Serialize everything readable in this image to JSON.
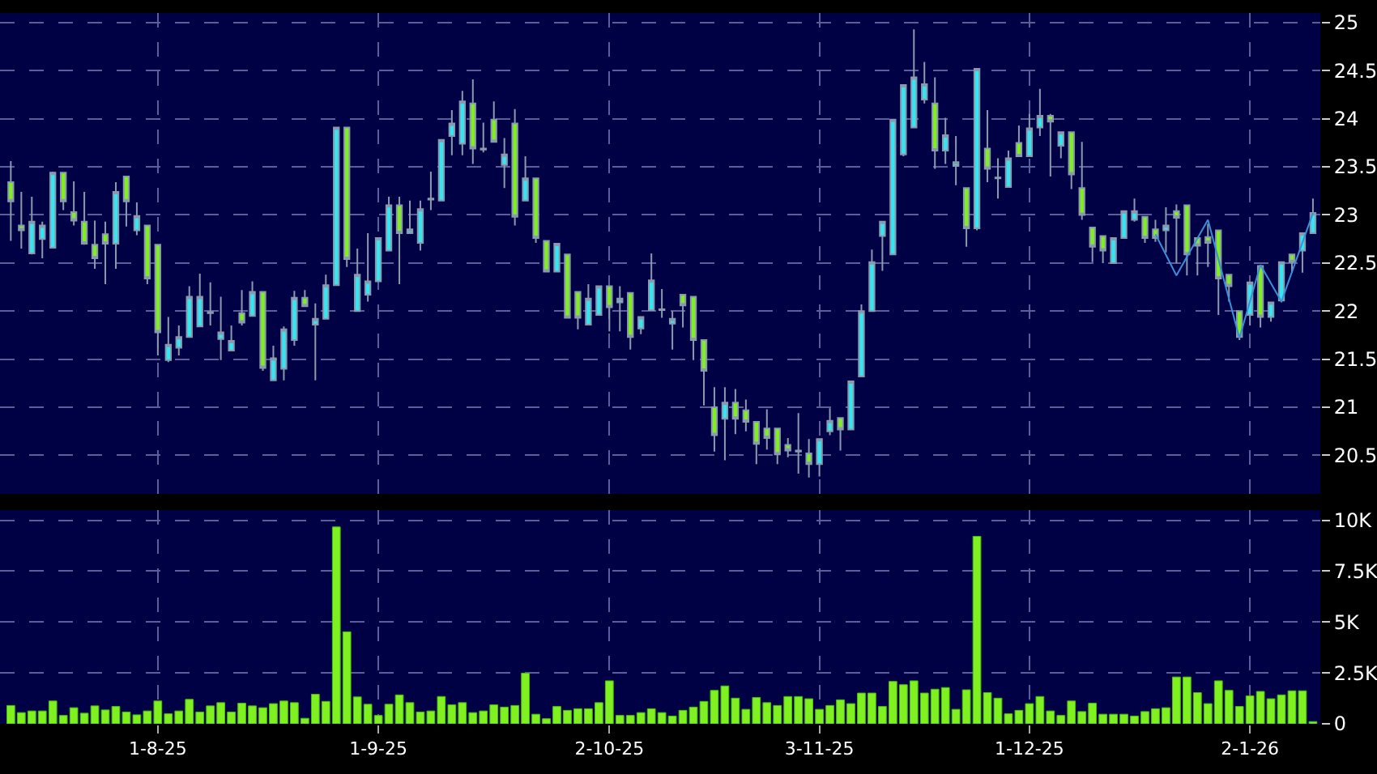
{
  "chart_data": [
    {
      "type": "candlestick",
      "categories": [
        null,
        null,
        null,
        null,
        null,
        null,
        null,
        null,
        null,
        null,
        null,
        null,
        null,
        null,
        "1-8-25",
        null,
        null,
        null,
        null,
        null,
        null,
        null,
        null,
        null,
        null,
        null,
        null,
        null,
        null,
        null,
        null,
        null,
        null,
        null,
        null,
        "1-9-25",
        null,
        null,
        null,
        null,
        null,
        null,
        null,
        null,
        null,
        null,
        null,
        null,
        null,
        null,
        null,
        null,
        null,
        null,
        null,
        null,
        null,
        "2-10-25",
        null,
        null,
        null,
        null,
        null,
        null,
        null,
        null,
        null,
        null,
        null,
        null,
        null,
        null,
        null,
        null,
        null,
        null,
        null,
        "3-11-25",
        null,
        null,
        null,
        null,
        null,
        null,
        null,
        null,
        null,
        null,
        null,
        null,
        null,
        null,
        null,
        null,
        null,
        null,
        null,
        "1-12-25",
        null,
        null,
        null,
        null,
        null,
        null,
        null,
        null,
        null,
        null,
        null,
        null,
        null,
        null,
        null,
        null,
        null,
        null,
        null,
        null,
        "2-1-26",
        null,
        null,
        null,
        null,
        null,
        null
      ],
      "ohlc": [
        [
          23.34,
          23.56,
          22.73,
          23.14
        ],
        [
          22.89,
          23.24,
          22.65,
          22.84
        ],
        [
          22.6,
          23.19,
          22.59,
          22.93
        ],
        [
          22.75,
          22.93,
          22.55,
          22.89
        ],
        [
          22.66,
          23.45,
          22.65,
          23.44
        ],
        [
          23.44,
          23.44,
          23.05,
          23.14
        ],
        [
          23.03,
          23.35,
          22.89,
          22.94
        ],
        [
          22.93,
          23.24,
          22.69,
          22.7
        ],
        [
          22.69,
          22.94,
          22.44,
          22.55
        ],
        [
          22.8,
          22.93,
          22.28,
          22.7
        ],
        [
          22.7,
          23.34,
          22.44,
          23.24
        ],
        [
          23.4,
          23.4,
          22.88,
          23.14
        ],
        [
          22.84,
          23.13,
          22.79,
          22.99
        ],
        [
          22.89,
          22.89,
          22.28,
          22.34
        ],
        [
          22.69,
          22.69,
          21.54,
          21.78
        ],
        [
          21.49,
          21.94,
          21.47,
          21.65
        ],
        [
          21.62,
          21.85,
          21.54,
          21.73
        ],
        [
          21.73,
          22.26,
          21.73,
          22.15
        ],
        [
          21.84,
          22.39,
          21.84,
          22.15
        ],
        [
          21.98,
          22.3,
          21.85,
          21.99
        ],
        [
          21.71,
          22.15,
          21.49,
          21.78
        ],
        [
          21.59,
          21.85,
          21.59,
          21.69
        ],
        [
          21.98,
          22.22,
          21.85,
          21.88
        ],
        [
          21.95,
          22.31,
          21.95,
          22.2
        ],
        [
          22.2,
          22.2,
          21.38,
          21.41
        ],
        [
          21.28,
          21.64,
          21.28,
          21.51
        ],
        [
          21.4,
          21.84,
          21.28,
          21.81
        ],
        [
          21.7,
          22.21,
          21.64,
          22.14
        ],
        [
          22.14,
          22.22,
          22.05,
          22.05
        ],
        [
          21.86,
          22.08,
          21.28,
          21.92
        ],
        [
          21.92,
          22.38,
          21.92,
          22.27
        ],
        [
          22.27,
          23.91,
          22.27,
          23.91
        ],
        [
          23.91,
          23.91,
          22.46,
          22.54
        ],
        [
          22.0,
          22.65,
          22.0,
          22.38
        ],
        [
          22.17,
          22.81,
          22.1,
          22.31
        ],
        [
          22.31,
          22.76,
          22.31,
          22.76
        ],
        [
          22.63,
          23.19,
          22.63,
          23.1
        ],
        [
          23.1,
          23.19,
          22.28,
          22.81
        ],
        [
          22.81,
          23.15,
          22.81,
          22.85
        ],
        [
          22.71,
          23.15,
          22.63,
          23.06
        ],
        [
          23.16,
          23.45,
          23.05,
          23.17
        ],
        [
          23.15,
          23.78,
          23.15,
          23.78
        ],
        [
          23.82,
          24.09,
          23.62,
          23.95
        ],
        [
          23.74,
          24.29,
          23.62,
          24.18
        ],
        [
          24.16,
          24.41,
          23.53,
          23.69
        ],
        [
          23.69,
          23.96,
          23.65,
          23.68
        ],
        [
          23.99,
          24.18,
          23.76,
          23.76
        ],
        [
          23.52,
          23.8,
          23.28,
          23.63
        ],
        [
          23.95,
          24.1,
          22.89,
          22.98
        ],
        [
          23.15,
          23.61,
          23.15,
          23.38
        ],
        [
          23.38,
          23.38,
          22.71,
          22.76
        ],
        [
          22.73,
          22.73,
          22.41,
          22.41
        ],
        [
          22.41,
          22.7,
          22.41,
          22.7
        ],
        [
          22.59,
          22.59,
          21.93,
          21.93
        ],
        [
          22.2,
          22.2,
          21.81,
          21.93
        ],
        [
          21.86,
          22.28,
          21.86,
          22.13
        ],
        [
          21.96,
          22.26,
          21.96,
          22.26
        ],
        [
          22.26,
          22.26,
          21.79,
          22.04
        ],
        [
          22.09,
          22.26,
          21.79,
          22.13
        ],
        [
          22.19,
          22.19,
          21.6,
          21.73
        ],
        [
          21.82,
          21.94,
          21.76,
          21.94
        ],
        [
          22.01,
          22.6,
          22.01,
          22.32
        ],
        [
          22.02,
          22.23,
          21.93,
          22.01
        ],
        [
          21.87,
          22.0,
          21.6,
          21.92
        ],
        [
          22.17,
          22.17,
          21.83,
          22.06
        ],
        [
          22.15,
          22.15,
          21.49,
          21.7
        ],
        [
          21.7,
          21.7,
          21.02,
          21.38
        ],
        [
          21.0,
          21.21,
          20.54,
          20.71
        ],
        [
          20.88,
          21.21,
          20.45,
          21.05
        ],
        [
          21.05,
          21.19,
          20.72,
          20.88
        ],
        [
          20.97,
          21.08,
          20.75,
          20.85
        ],
        [
          20.85,
          20.85,
          20.41,
          20.62
        ],
        [
          20.78,
          20.98,
          20.56,
          20.68
        ],
        [
          20.78,
          20.78,
          20.41,
          20.51
        ],
        [
          20.61,
          20.68,
          20.48,
          20.55
        ],
        [
          20.55,
          20.94,
          20.31,
          20.54
        ],
        [
          20.52,
          20.67,
          20.27,
          20.41
        ],
        [
          20.41,
          20.67,
          20.28,
          20.67
        ],
        [
          20.75,
          20.99,
          20.71,
          20.86
        ],
        [
          20.89,
          20.89,
          20.55,
          20.77
        ],
        [
          20.77,
          21.27,
          20.77,
          21.27
        ],
        [
          21.32,
          22.07,
          21.32,
          22.0
        ],
        [
          22.0,
          22.64,
          22.0,
          22.51
        ],
        [
          22.78,
          22.93,
          22.42,
          22.93
        ],
        [
          22.59,
          23.99,
          22.59,
          23.99
        ],
        [
          23.63,
          24.35,
          23.61,
          24.35
        ],
        [
          23.91,
          24.93,
          23.91,
          24.43
        ],
        [
          24.2,
          24.59,
          24.16,
          24.36
        ],
        [
          24.16,
          24.43,
          23.48,
          23.67
        ],
        [
          23.67,
          24.01,
          23.53,
          23.83
        ],
        [
          23.51,
          23.82,
          23.31,
          23.55
        ],
        [
          23.28,
          23.28,
          22.67,
          22.86
        ],
        [
          22.86,
          24.52,
          22.84,
          24.52
        ],
        [
          23.69,
          24.09,
          23.34,
          23.48
        ],
        [
          23.39,
          23.59,
          23.17,
          23.38
        ],
        [
          23.29,
          23.67,
          23.29,
          23.59
        ],
        [
          23.75,
          23.93,
          23.61,
          23.61
        ],
        [
          23.61,
          24.05,
          23.61,
          23.9
        ],
        [
          23.91,
          24.31,
          23.82,
          24.03
        ],
        [
          24.03,
          24.05,
          23.4,
          23.97
        ],
        [
          23.72,
          23.86,
          23.59,
          23.86
        ],
        [
          23.86,
          23.86,
          23.27,
          23.42
        ],
        [
          23.28,
          23.76,
          22.95,
          23.0
        ],
        [
          22.87,
          22.87,
          22.51,
          22.67
        ],
        [
          22.78,
          22.78,
          22.5,
          22.63
        ],
        [
          22.5,
          22.76,
          22.5,
          22.76
        ],
        [
          22.76,
          23.04,
          22.76,
          23.04
        ],
        [
          22.95,
          23.17,
          22.93,
          23.04
        ],
        [
          22.98,
          22.98,
          22.71,
          22.76
        ],
        [
          22.85,
          22.95,
          22.72,
          22.76
        ],
        [
          22.84,
          23.08,
          22.61,
          22.89
        ],
        [
          23.04,
          23.11,
          22.5,
          22.97
        ],
        [
          23.1,
          23.1,
          22.37,
          22.59
        ],
        [
          22.76,
          22.76,
          22.37,
          22.68
        ],
        [
          22.77,
          22.91,
          22.46,
          22.71
        ],
        [
          22.84,
          22.84,
          21.96,
          22.34
        ],
        [
          22.38,
          22.38,
          22.1,
          22.26
        ],
        [
          22.0,
          22.0,
          21.7,
          21.73
        ],
        [
          21.96,
          22.3,
          21.85,
          22.3
        ],
        [
          22.47,
          22.47,
          21.83,
          21.94
        ],
        [
          21.94,
          22.09,
          21.89,
          22.09
        ],
        [
          22.11,
          22.51,
          22.09,
          22.51
        ],
        [
          22.59,
          22.59,
          22.4,
          22.51
        ],
        [
          22.63,
          22.81,
          22.4,
          22.81
        ],
        [
          22.81,
          23.17,
          22.81,
          23.02
        ]
      ],
      "series": [
        {
          "type": "line",
          "color": "#3a8fd8",
          "values": [
            null,
            null,
            null,
            null,
            null,
            null,
            null,
            null,
            null,
            null,
            null,
            null,
            null,
            null,
            null,
            null,
            null,
            null,
            null,
            null,
            null,
            null,
            null,
            null,
            null,
            null,
            null,
            null,
            null,
            null,
            null,
            null,
            null,
            null,
            null,
            null,
            null,
            null,
            null,
            null,
            null,
            null,
            null,
            null,
            null,
            null,
            null,
            null,
            null,
            null,
            null,
            null,
            null,
            null,
            null,
            null,
            null,
            null,
            null,
            null,
            null,
            null,
            null,
            null,
            null,
            null,
            null,
            null,
            null,
            null,
            null,
            null,
            null,
            null,
            null,
            null,
            null,
            null,
            null,
            null,
            null,
            null,
            null,
            null,
            null,
            null,
            null,
            null,
            null,
            null,
            null,
            null,
            null,
            null,
            null,
            null,
            null,
            null,
            null,
            null,
            null,
            null,
            null,
            null,
            null,
            null,
            null,
            null,
            null,
            22.8,
            null,
            22.37,
            null,
            null,
            22.95,
            null,
            null,
            21.72,
            null,
            22.48,
            null,
            22.1,
            null,
            null,
            23.02
          ]
        }
      ],
      "ylim": [
        20.1,
        25.1
      ],
      "yticks": [
        20.5,
        21,
        21.5,
        22,
        22.5,
        23,
        23.5,
        24,
        24.5,
        25
      ],
      "grid": true,
      "tick_labels": "y",
      "legend": false
    },
    {
      "type": "bar",
      "categories": [
        null,
        null,
        null,
        null,
        null,
        null,
        null,
        null,
        null,
        null,
        null,
        null,
        null,
        null,
        "1-8-25",
        null,
        null,
        null,
        null,
        null,
        null,
        null,
        null,
        null,
        null,
        null,
        null,
        null,
        null,
        null,
        null,
        null,
        null,
        null,
        null,
        "1-9-25",
        null,
        null,
        null,
        null,
        null,
        null,
        null,
        null,
        null,
        null,
        null,
        null,
        null,
        null,
        null,
        null,
        null,
        null,
        null,
        null,
        null,
        "2-10-25",
        null,
        null,
        null,
        null,
        null,
        null,
        null,
        null,
        null,
        null,
        null,
        null,
        null,
        null,
        null,
        null,
        null,
        null,
        null,
        "3-11-25",
        null,
        null,
        null,
        null,
        null,
        null,
        null,
        null,
        null,
        null,
        null,
        null,
        null,
        null,
        null,
        null,
        null,
        null,
        null,
        "1-12-25",
        null,
        null,
        null,
        null,
        null,
        null,
        null,
        null,
        null,
        null,
        null,
        null,
        null,
        null,
        null,
        null,
        null,
        null,
        null,
        null,
        "2-1-26",
        null,
        null,
        null,
        null,
        null,
        null
      ],
      "values": [
        0.9,
        0.55,
        0.63,
        0.63,
        1.12,
        0.41,
        0.79,
        0.52,
        0.88,
        0.68,
        0.85,
        0.58,
        0.44,
        0.63,
        1.12,
        0.49,
        0.63,
        1.2,
        0.58,
        0.88,
        1.04,
        0.58,
        1.01,
        0.88,
        0.79,
        0.99,
        1.12,
        1.04,
        0.27,
        1.45,
        1.1,
        9.67,
        4.52,
        1.32,
        0.96,
        0.41,
        0.96,
        1.42,
        1.04,
        0.58,
        0.63,
        1.34,
        0.93,
        1.04,
        0.55,
        0.63,
        0.93,
        0.82,
        0.9,
        2.49,
        0.47,
        0.25,
        0.85,
        0.66,
        0.74,
        0.74,
        1.04,
        2.11,
        0.41,
        0.41,
        0.55,
        0.74,
        0.55,
        0.38,
        0.66,
        0.82,
        1.1,
        1.64,
        1.86,
        1.26,
        0.71,
        1.29,
        1.04,
        0.9,
        1.34,
        1.34,
        1.23,
        0.71,
        0.9,
        1.18,
        0.99,
        1.51,
        1.51,
        0.85,
        2.08,
        1.92,
        2.11,
        1.51,
        1.7,
        1.78,
        0.71,
        1.67,
        9.21,
        1.53,
        1.26,
        0.49,
        0.66,
        0.99,
        1.34,
        0.63,
        0.41,
        1.12,
        0.6,
        1.01,
        0.47,
        0.47,
        0.47,
        0.38,
        0.6,
        0.74,
        0.79,
        2.3,
        2.3,
        1.53,
        0.99,
        2.11,
        1.64,
        0.85,
        1.37,
        1.59,
        1.23,
        1.42,
        1.62,
        1.62,
        0.11
      ],
      "color": "#80f020",
      "ylim": [
        0,
        10.5
      ],
      "yticks": [
        0,
        {
          "value": 2.5,
          "label": "2.5K"
        },
        {
          "value": 5,
          "label": "5K"
        },
        {
          "value": 7.5,
          "label": "7.5K"
        },
        {
          "value": 10,
          "label": "10K"
        }
      ],
      "grid": true,
      "legend": false
    }
  ]
}
